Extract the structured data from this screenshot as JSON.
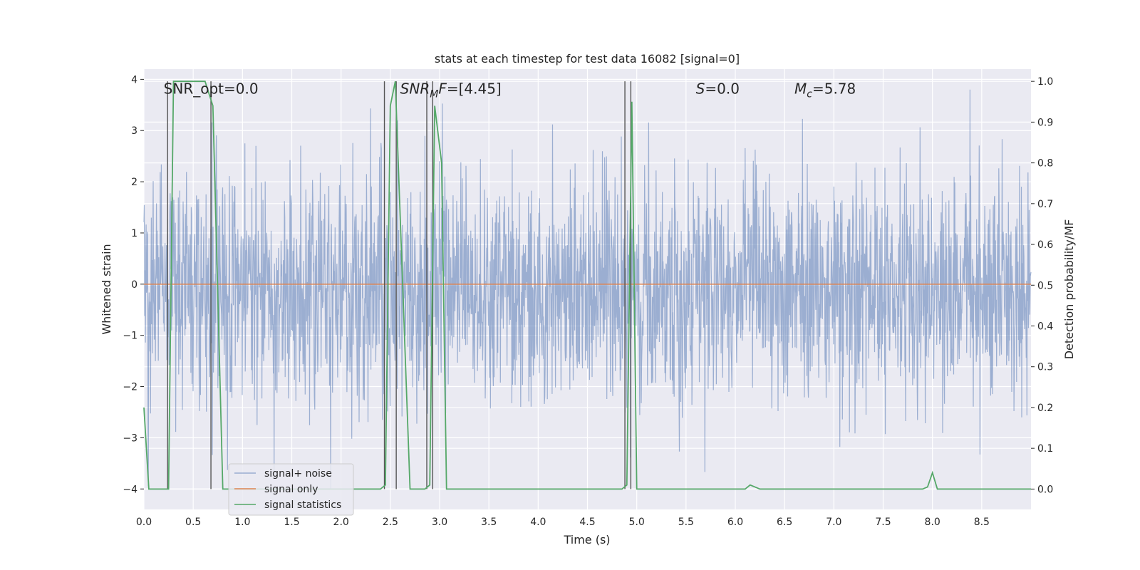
{
  "chart_data": {
    "type": "line",
    "title": "stats at each timestep for test data 16082 [signal=0]",
    "xlabel": "Time (s)",
    "ylabel_left": "Whitened strain",
    "ylabel_right": "Detection probability/MF",
    "xlim": [
      0.0,
      9.0
    ],
    "ylim_left": [
      -4.4,
      4.2
    ],
    "ylim_right": [
      -0.05,
      1.03
    ],
    "x_ticks": [
      0.0,
      0.5,
      1.0,
      1.5,
      2.0,
      2.5,
      3.0,
      3.5,
      4.0,
      4.5,
      5.0,
      5.5,
      6.0,
      6.5,
      7.0,
      7.5,
      8.0,
      8.5
    ],
    "x_tick_labels": [
      "0.0",
      "0.5",
      "1.0",
      "1.5",
      "2.0",
      "2.5",
      "3.0",
      "3.5",
      "4.0",
      "4.5",
      "5.0",
      "5.5",
      "6.0",
      "6.5",
      "7.0",
      "7.5",
      "8.0",
      "8.5"
    ],
    "y_left_ticks": [
      4,
      3,
      2,
      1,
      0,
      -1,
      -2,
      -3,
      -4
    ],
    "y_left_tick_labels": [
      "4",
      "3",
      "2",
      "1",
      "0",
      "−1",
      "−2",
      "−3",
      "−4"
    ],
    "y_right_ticks": [
      1.0,
      0.9,
      0.8,
      0.7,
      0.6,
      0.5,
      0.4,
      0.3,
      0.2,
      0.1,
      0.0
    ],
    "y_right_tick_labels": [
      "1.0",
      "0.9",
      "0.8",
      "0.7",
      "0.6",
      "0.5",
      "0.4",
      "0.3",
      "0.2",
      "0.1",
      "0.0"
    ],
    "annotations": [
      {
        "text": "SNR_opt=0.0",
        "x": 0.2,
        "y": 3.8
      },
      {
        "text": "SNR_MF=[4.45]",
        "x": 2.6,
        "y": 3.8
      },
      {
        "text": "S=0.0",
        "x": 5.6,
        "y": 3.8
      },
      {
        "text": "M_c=5.78",
        "x": 6.6,
        "y": 3.8
      }
    ],
    "series": [
      {
        "name": "signal+ noise",
        "axis": "left",
        "color": "#4c72b0",
        "style": "noisy trace, roughly Gaussian around 0",
        "x_range": [
          0.0,
          9.0
        ],
        "typical_range": [
          -1.7,
          1.4
        ],
        "extremes": [
          -4.0,
          3.8
        ]
      },
      {
        "name": "signal only",
        "axis": "left",
        "color": "#dd8452",
        "x": [
          0.0,
          9.0
        ],
        "values": [
          0.0,
          0.0
        ]
      },
      {
        "name": "signal statistics",
        "axis": "right",
        "color": "#55a868",
        "x": [
          0.0,
          0.05,
          0.25,
          0.3,
          0.62,
          0.7,
          0.8,
          2.4,
          2.45,
          2.5,
          2.55,
          2.7,
          2.85,
          2.9,
          2.95,
          3.02,
          3.07,
          4.85,
          4.9,
          4.95,
          5.0,
          6.1,
          6.15,
          6.25,
          7.9,
          7.95,
          8.0,
          8.05,
          9.0
        ],
        "values": [
          0.2,
          0.0,
          0.0,
          1.0,
          1.0,
          0.94,
          0.0,
          0.0,
          0.01,
          0.94,
          1.0,
          0.0,
          0.0,
          0.01,
          0.94,
          0.8,
          0.0,
          0.0,
          0.01,
          0.95,
          0.0,
          0.0,
          0.01,
          0.0,
          0.0,
          0.005,
          0.04,
          0.0,
          0.0
        ]
      }
    ],
    "vertical_lines": [
      0.24,
      0.68,
      2.44,
      2.56,
      2.87,
      2.93,
      4.88,
      4.94
    ],
    "legend": {
      "position": "lower-left",
      "entries": [
        "signal+ noise",
        "signal only",
        "signal statistics"
      ]
    },
    "grid": true
  }
}
